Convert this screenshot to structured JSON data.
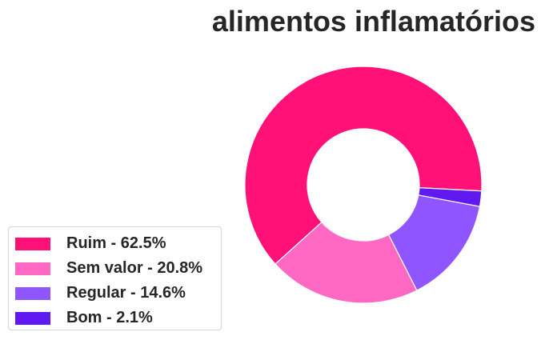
{
  "chart_data": {
    "type": "pie",
    "title": "alimentos inflamatórios",
    "donut": true,
    "legend_position": "lower-left",
    "slices": [
      {
        "label": "Ruim",
        "value": 62.5,
        "legend": "Ruim - 62.5%",
        "color": "#ff1177"
      },
      {
        "label": "Sem valor",
        "value": 20.8,
        "legend": "Sem valor - 20.8%",
        "color": "#ff69c4"
      },
      {
        "label": "Regular",
        "value": 14.6,
        "legend": "Regular - 14.6%",
        "color": "#8f55ff"
      },
      {
        "label": "Bom",
        "value": 2.1,
        "legend": "Bom - 2.1%",
        "color": "#6019ee"
      }
    ]
  }
}
